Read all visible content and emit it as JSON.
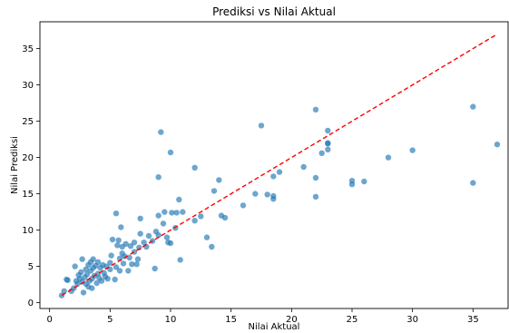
{
  "chart_data": {
    "type": "scatter",
    "title": "Prediksi vs Nilai Aktual",
    "xlabel": "Nilai Aktual",
    "ylabel": "Nilai Prediksi",
    "xlim": [
      -0.8,
      37.9
    ],
    "ylim": [
      -0.8,
      38.7
    ],
    "xticks": [
      0,
      5,
      10,
      15,
      20,
      25,
      30,
      35
    ],
    "yticks": [
      0,
      5,
      10,
      15,
      20,
      25,
      30,
      35
    ],
    "grid": false,
    "point_color": "#1f77b4",
    "reference_line": {
      "style": "dashed",
      "color": "#ff0000",
      "from": [
        1.0,
        1.0
      ],
      "to": [
        37.0,
        37.0
      ]
    },
    "points": [
      [
        1.0,
        1.0
      ],
      [
        1.2,
        1.6
      ],
      [
        1.4,
        3.2
      ],
      [
        1.5,
        3.1
      ],
      [
        1.8,
        1.6
      ],
      [
        2.0,
        2.0
      ],
      [
        2.1,
        5.0
      ],
      [
        2.2,
        3.0
      ],
      [
        2.3,
        2.6
      ],
      [
        2.4,
        3.8
      ],
      [
        2.5,
        3.3
      ],
      [
        2.6,
        4.2
      ],
      [
        2.7,
        2.9
      ],
      [
        2.7,
        6.0
      ],
      [
        2.8,
        1.4
      ],
      [
        2.9,
        3.5
      ],
      [
        3.0,
        4.6
      ],
      [
        3.0,
        2.6
      ],
      [
        3.1,
        3.9
      ],
      [
        3.2,
        5.2
      ],
      [
        3.2,
        2.2
      ],
      [
        3.3,
        3.0
      ],
      [
        3.4,
        4.4
      ],
      [
        3.4,
        5.6
      ],
      [
        3.5,
        3.3
      ],
      [
        3.5,
        2.0
      ],
      [
        3.6,
        4.8
      ],
      [
        3.6,
        6.0
      ],
      [
        3.7,
        3.7
      ],
      [
        3.8,
        5.1
      ],
      [
        3.9,
        2.7
      ],
      [
        4.0,
        4.0
      ],
      [
        4.0,
        5.6
      ],
      [
        4.1,
        3.4
      ],
      [
        4.2,
        4.8
      ],
      [
        4.3,
        3.0
      ],
      [
        4.4,
        5.2
      ],
      [
        4.5,
        4.1
      ],
      [
        4.6,
        3.6
      ],
      [
        4.7,
        5.0
      ],
      [
        4.8,
        3.3
      ],
      [
        5.0,
        4.6
      ],
      [
        5.0,
        5.5
      ],
      [
        5.1,
        6.5
      ],
      [
        5.2,
        8.7
      ],
      [
        5.4,
        3.2
      ],
      [
        5.5,
        12.3
      ],
      [
        5.5,
        4.9
      ],
      [
        5.6,
        7.9
      ],
      [
        5.7,
        8.6
      ],
      [
        5.8,
        6.1
      ],
      [
        5.8,
        4.4
      ],
      [
        5.9,
        10.4
      ],
      [
        6.0,
        6.8
      ],
      [
        6.0,
        7.7
      ],
      [
        6.1,
        5.4
      ],
      [
        6.2,
        6.4
      ],
      [
        6.3,
        8.1
      ],
      [
        6.5,
        4.4
      ],
      [
        6.6,
        6.2
      ],
      [
        6.7,
        7.8
      ],
      [
        6.8,
        5.3
      ],
      [
        7.0,
        8.3
      ],
      [
        7.0,
        7.0
      ],
      [
        7.2,
        5.3
      ],
      [
        7.3,
        6.0
      ],
      [
        7.4,
        7.6
      ],
      [
        7.5,
        11.6
      ],
      [
        7.5,
        9.5
      ],
      [
        7.8,
        8.3
      ],
      [
        8.0,
        7.7
      ],
      [
        8.2,
        9.2
      ],
      [
        8.5,
        8.5
      ],
      [
        8.7,
        4.7
      ],
      [
        8.8,
        9.8
      ],
      [
        9.0,
        9.3
      ],
      [
        9.0,
        17.3
      ],
      [
        9.0,
        12.0
      ],
      [
        9.2,
        23.5
      ],
      [
        9.4,
        10.9
      ],
      [
        9.5,
        12.5
      ],
      [
        9.7,
        9.0
      ],
      [
        9.8,
        8.3
      ],
      [
        10.0,
        20.7
      ],
      [
        10.0,
        8.2
      ],
      [
        10.1,
        12.4
      ],
      [
        10.4,
        10.3
      ],
      [
        10.5,
        12.4
      ],
      [
        10.7,
        14.2
      ],
      [
        10.8,
        5.9
      ],
      [
        11.0,
        12.5
      ],
      [
        12.0,
        18.6
      ],
      [
        12.0,
        11.3
      ],
      [
        12.5,
        11.9
      ],
      [
        13.0,
        9.0
      ],
      [
        13.4,
        7.7
      ],
      [
        13.6,
        15.4
      ],
      [
        14.0,
        16.9
      ],
      [
        14.2,
        12.0
      ],
      [
        14.5,
        11.7
      ],
      [
        16.0,
        13.4
      ],
      [
        17.0,
        15.0
      ],
      [
        17.5,
        24.4
      ],
      [
        18.0,
        14.9
      ],
      [
        18.5,
        17.4
      ],
      [
        18.5,
        14.7
      ],
      [
        18.5,
        14.3
      ],
      [
        19.0,
        18.0
      ],
      [
        21.0,
        18.7
      ],
      [
        22.0,
        26.6
      ],
      [
        22.0,
        17.2
      ],
      [
        22.0,
        14.6
      ],
      [
        22.5,
        20.6
      ],
      [
        23.0,
        21.1
      ],
      [
        23.0,
        21.9
      ],
      [
        23.0,
        22.0
      ],
      [
        23.0,
        23.7
      ],
      [
        25.0,
        16.3
      ],
      [
        25.0,
        16.8
      ],
      [
        26.0,
        16.7
      ],
      [
        28.0,
        20.0
      ],
      [
        30.0,
        21.0
      ],
      [
        35.0,
        27.0
      ],
      [
        35.0,
        16.5
      ],
      [
        37.0,
        21.8
      ]
    ]
  }
}
